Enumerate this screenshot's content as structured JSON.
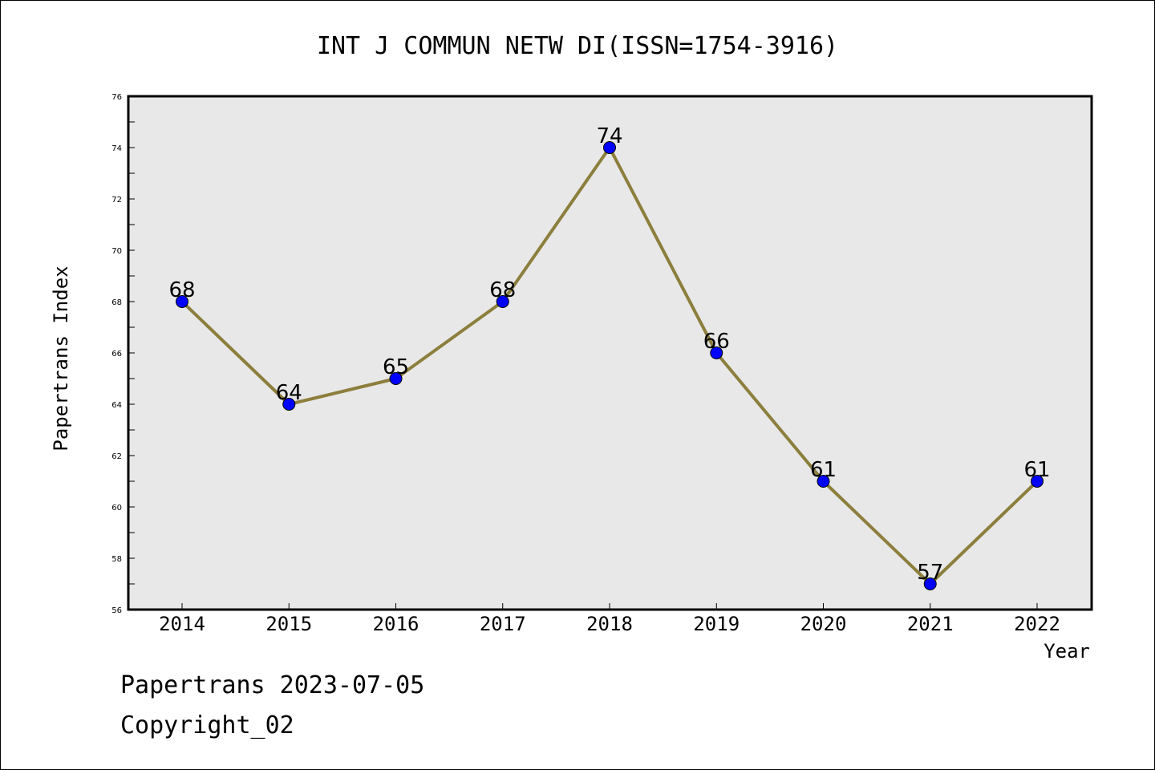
{
  "chart_data": {
    "type": "line",
    "title": "INT J COMMUN NETW DI(ISSN=1754-3916)",
    "xlabel": "Year",
    "ylabel": "Papertrans Index",
    "x": [
      "2014",
      "2015",
      "2016",
      "2017",
      "2018",
      "2019",
      "2020",
      "2021",
      "2022"
    ],
    "series": [
      {
        "values": [
          68,
          64,
          65,
          68,
          74,
          66,
          61,
          57,
          61
        ]
      }
    ],
    "ylim": [
      56,
      76
    ],
    "yticks": [
      56,
      58,
      60,
      62,
      64,
      66,
      68,
      70,
      72,
      74,
      76
    ],
    "grid": false,
    "data_labels": true,
    "colors": {
      "line": "#8c7e3c",
      "marker": "#0000ff",
      "plot_bg": "#e8e8e8"
    }
  },
  "footer": {
    "line1": "Papertrans 2023-07-05",
    "line2": "Copyright_02"
  }
}
